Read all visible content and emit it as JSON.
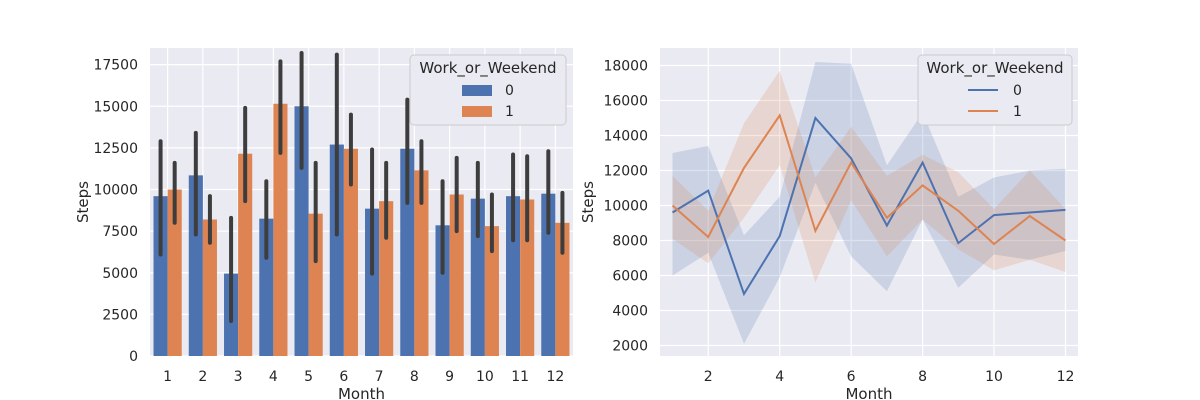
{
  "colors": {
    "background": "#eaeaf2",
    "grid": "#ffffff",
    "series0": "#4c72b0",
    "series1": "#dd8452",
    "errorbar": "#3d3d3d",
    "legend_bg": "#eaeaf2",
    "legend_border": "#cccccc"
  },
  "chart_data": [
    {
      "type": "bar",
      "xlabel": "Month",
      "ylabel": "Steps",
      "ylim": [
        0,
        18500
      ],
      "yticks": [
        0,
        2500,
        5000,
        7500,
        10000,
        12500,
        15000,
        17500
      ],
      "categories": [
        "1",
        "2",
        "3",
        "4",
        "5",
        "6",
        "7",
        "8",
        "9",
        "10",
        "11",
        "12"
      ],
      "grid": true,
      "legend": {
        "title": "Work_or_Weekend",
        "placement": "top-right",
        "labels": [
          "0",
          "1"
        ]
      },
      "series": [
        {
          "name": "0",
          "values": [
            9600,
            10850,
            4950,
            8250,
            15000,
            12700,
            8850,
            12450,
            7850,
            9450,
            9600,
            9750
          ],
          "ci_low": [
            6100,
            7300,
            2100,
            5900,
            11300,
            7300,
            4950,
            9200,
            5000,
            7200,
            6950,
            7400
          ],
          "ci_high": [
            12900,
            13400,
            8300,
            10500,
            18200,
            18100,
            12400,
            15400,
            10500,
            11600,
            12100,
            12300
          ]
        },
        {
          "name": "1",
          "values": [
            10000,
            8200,
            12150,
            15150,
            8550,
            12450,
            9300,
            11150,
            9700,
            7800,
            9400,
            8000
          ],
          "ci_low": [
            8000,
            6800,
            9300,
            12200,
            5700,
            10300,
            7100,
            9200,
            7500,
            6300,
            6950,
            6200
          ],
          "ci_high": [
            11600,
            9600,
            14900,
            17700,
            11600,
            14500,
            11600,
            12900,
            11900,
            9700,
            12000,
            9800
          ]
        }
      ]
    },
    {
      "type": "line",
      "xlabel": "Month",
      "ylabel": "Steps",
      "xlim": [
        0.65,
        12.35
      ],
      "ylim": [
        1400,
        19000
      ],
      "xticks": [
        2,
        4,
        6,
        8,
        10,
        12
      ],
      "yticks": [
        2000,
        4000,
        6000,
        8000,
        10000,
        12000,
        14000,
        16000,
        18000
      ],
      "grid": true,
      "legend": {
        "title": "Work_or_Weekend",
        "placement": "top-right",
        "labels": [
          "0",
          "1"
        ]
      },
      "x": [
        1,
        2,
        3,
        4,
        5,
        6,
        7,
        8,
        9,
        10,
        11,
        12
      ],
      "series": [
        {
          "name": "0",
          "values": [
            9600,
            10850,
            4950,
            8250,
            15000,
            12700,
            8850,
            12450,
            7850,
            9450,
            9600,
            9750
          ],
          "ci_low": [
            6000,
            7300,
            2100,
            5900,
            11300,
            7100,
            5100,
            9200,
            5300,
            7200,
            6900,
            7400
          ],
          "ci_high": [
            13000,
            13400,
            8300,
            10500,
            18200,
            18100,
            12300,
            15300,
            10500,
            11600,
            12000,
            12100
          ]
        },
        {
          "name": "1",
          "values": [
            10000,
            8200,
            12150,
            15150,
            8550,
            12450,
            9300,
            11150,
            9700,
            7800,
            9400,
            8000
          ],
          "ci_low": [
            8100,
            6700,
            9300,
            12300,
            5600,
            10300,
            7100,
            9200,
            7500,
            6300,
            6900,
            6200
          ],
          "ci_high": [
            11700,
            9700,
            14700,
            17700,
            11600,
            14500,
            11700,
            12900,
            11900,
            9800,
            12000,
            9800
          ]
        }
      ]
    }
  ]
}
